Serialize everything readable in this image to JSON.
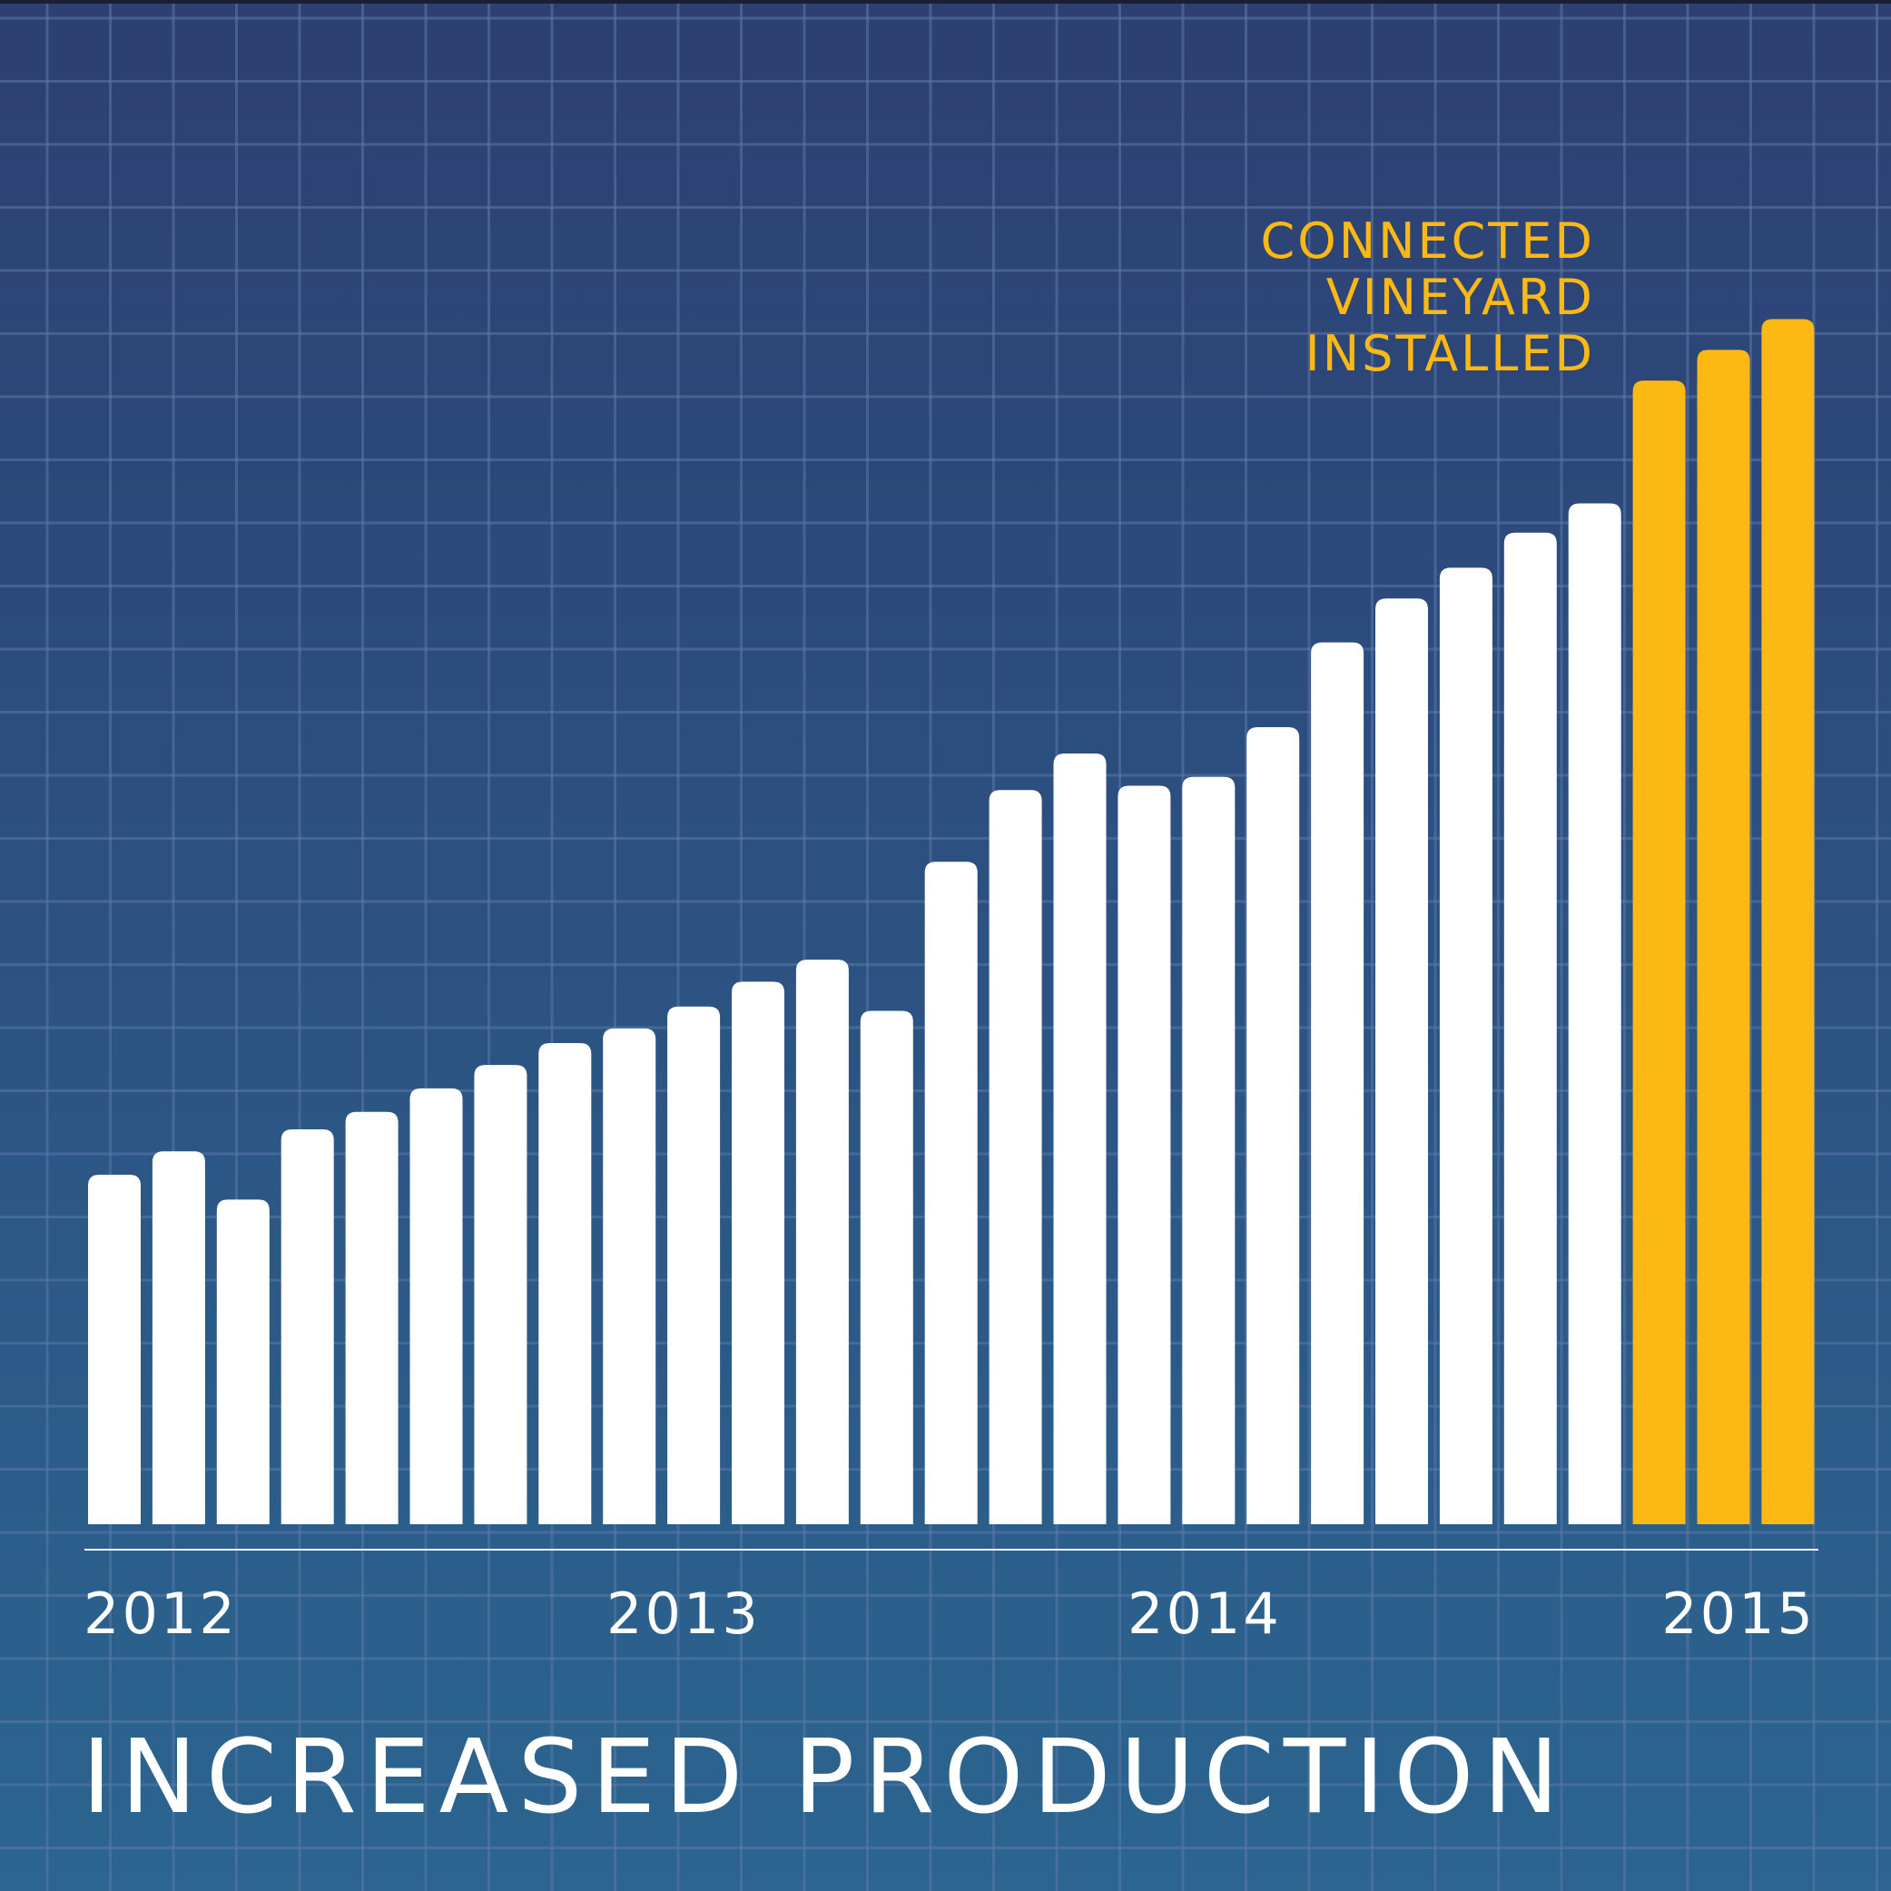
{
  "chart_data": {
    "type": "bar",
    "title": "INCREASED PRODUCTION",
    "xlabel": "",
    "ylabel": "",
    "ylim": [
      0,
      100
    ],
    "grid": true,
    "x_tick_labels": [
      "2012",
      "2013",
      "2014",
      "2015"
    ],
    "values": [
      23.9,
      25.5,
      22.2,
      27.0,
      28.2,
      29.8,
      31.4,
      32.9,
      33.9,
      35.4,
      37.1,
      38.6,
      35.1,
      45.3,
      50.2,
      52.7,
      50.5,
      51.1,
      54.5,
      60.3,
      63.3,
      65.4,
      67.8,
      69.8,
      78.2,
      80.3,
      82.4
    ],
    "highlight_from_index": 24,
    "annotation": {
      "lines": [
        "CONNECTED",
        "VINEYARD",
        "INSTALLED"
      ]
    },
    "colors": {
      "background_top": "#2D3F73",
      "background_bottom": "#2B6590",
      "grid": "#5B79A8",
      "bar": "#FFFFFF",
      "highlight_bar": "#FDB913",
      "annotation": "#FDB913",
      "axis": "#FFFFFF",
      "text": "#FFFFFF"
    }
  }
}
